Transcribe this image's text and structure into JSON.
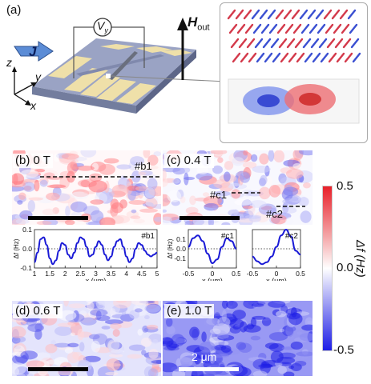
{
  "panels": {
    "a": {
      "label": "(a)",
      "vy": "V",
      "vy_sub": "y",
      "j": "J",
      "hout": "H",
      "hout_sub": "out",
      "axes": [
        "z",
        "y",
        "x"
      ]
    },
    "b": {
      "label": "(b)",
      "field": "0 T",
      "marker": "#b1"
    },
    "c": {
      "label": "(c)",
      "field": "0.4 T",
      "markers": [
        "#c1",
        "#c2"
      ]
    },
    "d": {
      "label": "(d)",
      "field": "0.6 T"
    },
    "e": {
      "label": "(e)",
      "field": "1.0 T",
      "scalebar": "2 μm"
    }
  },
  "colorbar": {
    "ticks": [
      "0.5",
      "0.0",
      "-0.5"
    ],
    "label": "Δf (Hz)",
    "colors": [
      "#e8202a",
      "#ffffff",
      "#1d1de6"
    ]
  },
  "chart_data": [
    {
      "type": "line",
      "title": "#b1",
      "xlabel": "x (μm)",
      "ylabel": "Δf (Hz)",
      "xlim": [
        1,
        5
      ],
      "ylim": [
        -0.1,
        0.1
      ],
      "xticks": [
        "1",
        "1.5",
        "2",
        "2.5",
        "3",
        "3.5",
        "4",
        "4.5",
        "5"
      ],
      "yticks": [
        "0.1",
        "0.0",
        "-0.1"
      ],
      "x": [
        1.0,
        1.1,
        1.2,
        1.3,
        1.4,
        1.5,
        1.6,
        1.7,
        1.8,
        1.9,
        2.0,
        2.1,
        2.2,
        2.3,
        2.4,
        2.5,
        2.6,
        2.7,
        2.8,
        2.9,
        3.0,
        3.1,
        3.2,
        3.3,
        3.4,
        3.5,
        3.6,
        3.7,
        3.8,
        3.9,
        4.0,
        4.1,
        4.2,
        4.3,
        4.4,
        4.5,
        4.6,
        4.7,
        4.8,
        4.9,
        5.0
      ],
      "y": [
        -0.07,
        -0.02,
        0.05,
        0.06,
        0.02,
        -0.05,
        -0.08,
        -0.06,
        -0.01,
        0.03,
        0.02,
        -0.03,
        -0.05,
        -0.02,
        0.03,
        0.06,
        0.05,
        0.01,
        -0.04,
        -0.03,
        0.01,
        0.04,
        0.02,
        -0.03,
        -0.06,
        -0.04,
        0.01,
        0.04,
        0.05,
        0.01,
        -0.04,
        -0.07,
        -0.05,
        0.0,
        0.03,
        0.02,
        -0.01,
        -0.03,
        -0.04,
        -0.03,
        -0.02
      ]
    },
    {
      "type": "line",
      "title": "#c1",
      "xlabel": "x (μm)",
      "ylabel": "Δf (Hz)",
      "xlim": [
        -0.5,
        0.5
      ],
      "ylim": [
        -0.2,
        0.2
      ],
      "xticks": [
        "-0.5",
        "0",
        "0.5"
      ],
      "yticks": [
        "0.1",
        "0.0",
        "-0.1"
      ],
      "x": [
        -0.5,
        -0.4,
        -0.3,
        -0.2,
        -0.1,
        0.0,
        0.1,
        0.2,
        0.3,
        0.4,
        0.5
      ],
      "y": [
        0.02,
        0.11,
        0.14,
        0.08,
        -0.05,
        -0.15,
        -0.11,
        0.02,
        0.11,
        0.08,
        0.0
      ]
    },
    {
      "type": "line",
      "title": "#c2",
      "xlabel": "x (μm)",
      "ylabel": "",
      "xlim": [
        -0.5,
        0.5
      ],
      "ylim": [
        -0.2,
        0.2
      ],
      "xticks": [
        "-0.5",
        "0",
        "0.5"
      ],
      "yticks": [],
      "x": [
        -0.5,
        -0.4,
        -0.3,
        -0.2,
        -0.1,
        0.0,
        0.1,
        0.2,
        0.3,
        0.4,
        0.5
      ],
      "y": [
        -0.08,
        -0.13,
        -0.16,
        -0.14,
        -0.08,
        0.02,
        0.14,
        0.2,
        0.13,
        -0.02,
        -0.06
      ]
    }
  ]
}
